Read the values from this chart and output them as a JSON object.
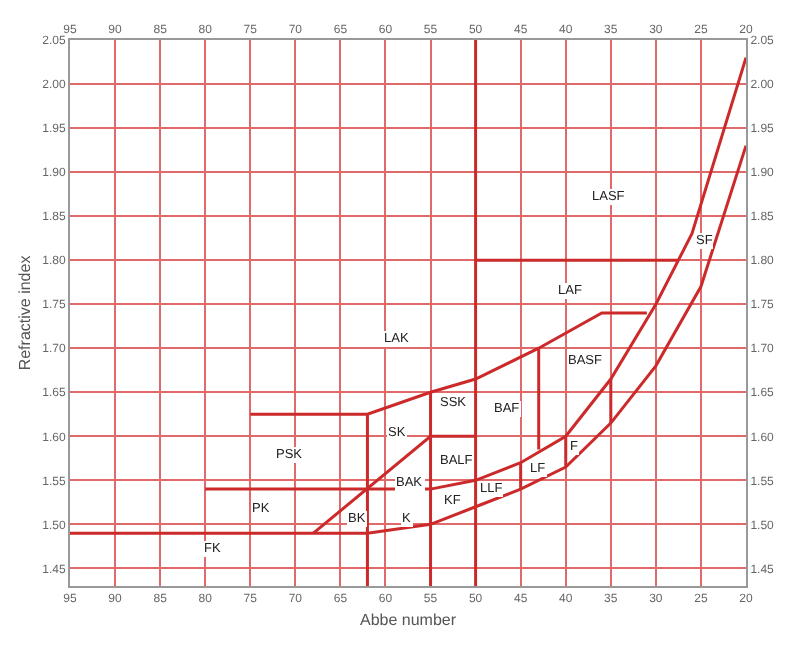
{
  "chart_data": {
    "type": "line",
    "xlabel": "Abbe number",
    "ylabel": "Refractive index",
    "xlim": [
      95,
      20
    ],
    "xticks": [
      95,
      90,
      85,
      80,
      75,
      70,
      65,
      60,
      55,
      50,
      45,
      40,
      35,
      30,
      25,
      20
    ],
    "x2lim": [
      95,
      20
    ],
    "x2ticks": [
      95,
      90,
      85,
      80,
      75,
      70,
      65,
      60,
      55,
      50,
      45,
      40,
      35,
      30,
      25,
      20
    ],
    "ylim": [
      1.43,
      2.05
    ],
    "yticks": [
      1.45,
      {
        "value": 1.5,
        "label": "1.50"
      },
      1.55,
      {
        "value": 1.6,
        "label": "1.60"
      },
      1.65,
      {
        "value": 1.7,
        "label": "1.70"
      },
      1.75,
      {
        "value": 1.8,
        "label": "1.80"
      },
      1.85,
      {
        "value": 1.9,
        "label": "1.90"
      },
      1.95,
      {
        "value": 2.0,
        "label": "2.00"
      },
      2.05
    ],
    "y2lim": [
      1.43,
      2.05
    ],
    "y2ticks": [
      1.45,
      {
        "value": 1.5,
        "label": "1.50"
      },
      1.55,
      {
        "value": 1.6,
        "label": "1.60"
      },
      1.65,
      {
        "value": 1.7,
        "label": "1.70"
      },
      1.75,
      {
        "value": 1.8,
        "label": "1.80"
      },
      1.85,
      {
        "value": 1.9,
        "label": "1.90"
      },
      1.95,
      {
        "value": 2.0,
        "label": "2.00"
      },
      2.05
    ],
    "grid": true,
    "marker": "none",
    "line_style": "solid",
    "series": [
      {
        "color": "#cc2a2a",
        "x": [
          75,
          62,
          55,
          50,
          43,
          36,
          31
        ],
        "values": [
          1.625,
          1.625,
          1.65,
          1.665,
          1.7,
          1.74,
          1.74
        ]
      },
      {
        "color": "#cc2a2a",
        "x": [
          80,
          55,
          50,
          45,
          40,
          35,
          30,
          26,
          20
        ],
        "values": [
          1.54,
          1.54,
          1.55,
          1.57,
          1.6,
          1.665,
          1.75,
          1.83,
          2.03
        ]
      },
      {
        "color": "#cc2a2a",
        "x": [
          95,
          62,
          55,
          50,
          45,
          40,
          35,
          30,
          25,
          20
        ],
        "values": [
          1.49,
          1.49,
          1.5,
          1.52,
          1.54,
          1.565,
          1.615,
          1.68,
          1.77,
          1.93
        ]
      },
      {
        "color": "#cc2a2a",
        "x": [
          68,
          55,
          50
        ],
        "values": [
          1.49,
          1.6,
          1.6
        ]
      },
      {
        "color": "#cc2a2a",
        "x": [
          62,
          62
        ],
        "values": [
          1.43,
          1.625
        ]
      },
      {
        "color": "#cc2a2a",
        "x": [
          55,
          55
        ],
        "values": [
          1.43,
          1.65
        ]
      },
      {
        "color": "#cc2a2a",
        "x": [
          50,
          50
        ],
        "values": [
          1.43,
          2.05
        ]
      },
      {
        "color": "#cc2a2a",
        "x": [
          50,
          27.5
        ],
        "values": [
          1.8,
          1.8
        ]
      },
      {
        "color": "#cc2a2a",
        "x": [
          43,
          43
        ],
        "values": [
          1.585,
          1.7
        ]
      },
      {
        "color": "#cc2a2a",
        "x": [
          45,
          45
        ],
        "values": [
          1.54,
          1.57
        ]
      },
      {
        "color": "#cc2a2a",
        "x": [
          40,
          40
        ],
        "values": [
          1.565,
          1.6
        ]
      },
      {
        "color": "#cc2a2a",
        "x": [
          35,
          35
        ],
        "values": [
          1.615,
          1.665
        ]
      }
    ],
    "annotations": [
      "LASF",
      {
        "text": "SF",
        "x": 24.7,
        "y": 1.822
      },
      "LAF",
      "LAK",
      "BASF",
      "SSK",
      "BAF",
      "SK",
      "BALF",
      {
        "text": "LF",
        "x": 43.1,
        "y": 1.562
      },
      {
        "text": "F",
        "x": 39.0,
        "y": 1.588
      },
      {
        "text": "BAK",
        "x": 57.2,
        "y": 1.548
      },
      {
        "text": "LLF",
        "x": 48.2,
        "y": 1.541
      },
      "KF",
      {
        "text": "K",
        "x": 57.7,
        "y": 1.507
      },
      {
        "text": "BK",
        "x": 63.1,
        "y": 1.507
      },
      "PK",
      "PSK",
      "FK"
    ]
  }
}
